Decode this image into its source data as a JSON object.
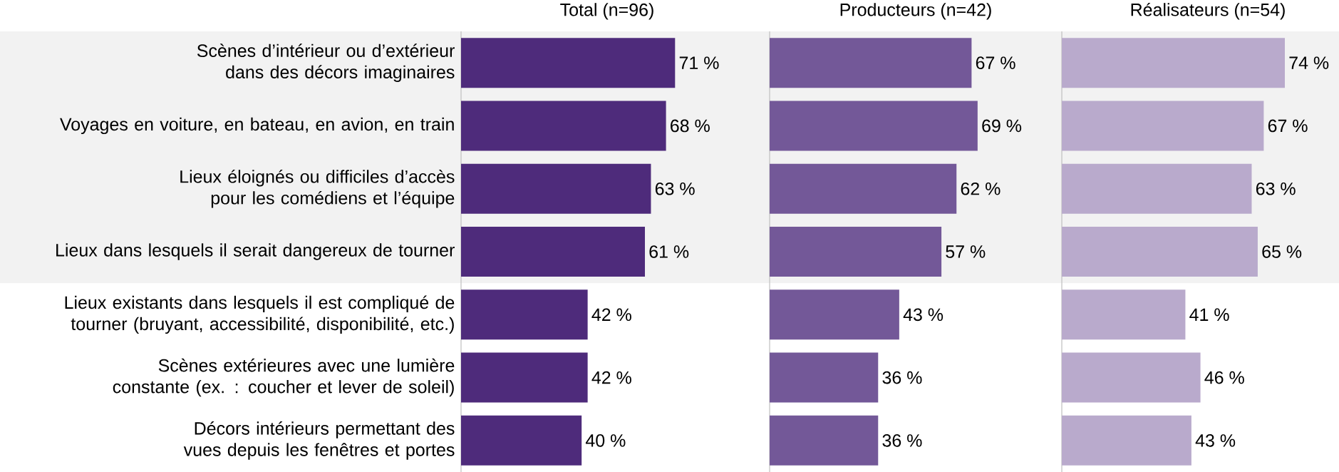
{
  "chart_data": [
    {
      "type": "bar",
      "orientation": "horizontal",
      "title": "Total (n=96)",
      "tick_labels": "y",
      "color": "#4e2b7b",
      "categories": [
        "Scènes d’intérieur ou d’extérieur dans des décors imaginaires",
        "Voyages en voiture, en bateau, en avion, en train",
        "Lieux éloignés ou difficiles d’accès pour les comédiens et l’équipe",
        "Lieux dans lesquels il serait dangereux de tourner",
        "Lieux existants dans lesquels il est compliqué de tourner (bruyant, accessibilité, disponibilité, etc.)",
        "Scènes extérieures avec une lumière constante (ex. : coucher et lever de soleil)",
        "Décors intérieurs permettant des vues depuis les fenêtres et portes"
      ],
      "values": [
        71,
        68,
        63,
        61,
        42,
        42,
        40
      ],
      "value_labels": [
        "71 %",
        "68 %",
        "63 %",
        "61 %",
        "42 %",
        "42 %",
        "40 %"
      ],
      "bands": [
        {
          "axis": "y",
          "from": "Scènes d’intérieur ou d’extérieur dans des décors imaginaires",
          "to": "Lieux dans lesquels il serait dangereux de tourner",
          "color": "#f2f2f2"
        }
      ]
    },
    {
      "type": "bar",
      "orientation": "horizontal",
      "title": "Producteurs (n=42)",
      "tick_labels": false,
      "color": "#735898",
      "values": [
        67,
        69,
        62,
        57,
        43,
        36,
        36
      ],
      "value_labels": [
        "67 %",
        "69 %",
        "62 %",
        "57 %",
        "43 %",
        "36 %",
        "36 %"
      ]
    },
    {
      "type": "bar",
      "orientation": "horizontal",
      "title": "Réalisateurs (n=54)",
      "tick_labels": false,
      "color": "#b9aacc",
      "values": [
        74,
        67,
        63,
        65,
        41,
        46,
        43
      ],
      "value_labels": [
        "74 %",
        "67 %",
        "63 %",
        "65 %",
        "41 %",
        "46 %",
        "43 %"
      ]
    }
  ]
}
